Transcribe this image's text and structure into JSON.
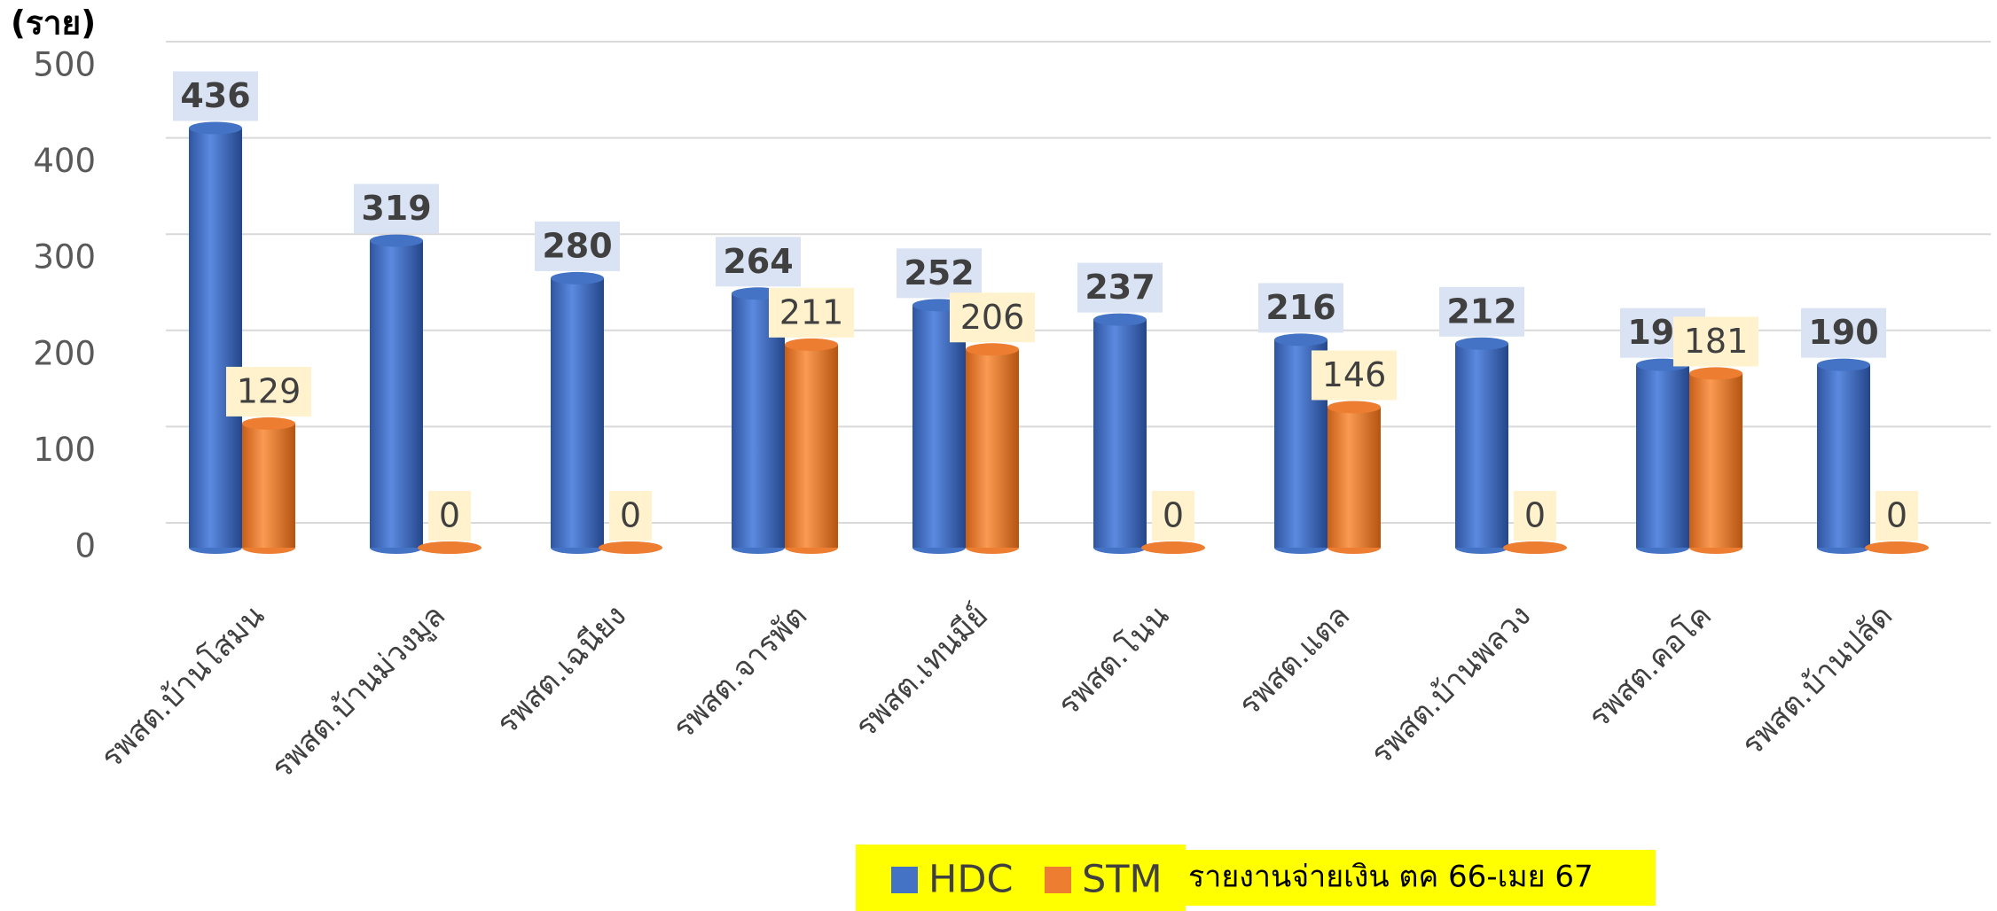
{
  "chart_data": {
    "type": "bar",
    "y_label": "(ราย)",
    "categories": [
      "รพสต.บ้านโสมน",
      "รพสต.บ้านม่วงมูล",
      "รพสต.เฉนียง",
      "รพสต.จารพัต",
      "รพสต.เทนมีย์",
      "รพสต.โนน",
      "รพสต.แตล",
      "รพสต.บ้านพลวง",
      "รพสต.คอโค",
      "รพสต.บ้านปลัด"
    ],
    "series": [
      {
        "name": "HDC",
        "color": "#4472c4",
        "values": [
          436,
          319,
          280,
          264,
          252,
          237,
          216,
          212,
          190,
          190
        ]
      },
      {
        "name": "STM",
        "color": "#ed7d31",
        "values": [
          129,
          0,
          0,
          211,
          206,
          0,
          146,
          0,
          181,
          0
        ]
      }
    ],
    "ylim": [
      0,
      500
    ],
    "yticks": [
      0,
      100,
      200,
      300,
      400,
      500
    ],
    "grid": true,
    "legend": "bottom",
    "annotation": "รายงานจ่ายเงิน ตค 66-เมย 67"
  }
}
